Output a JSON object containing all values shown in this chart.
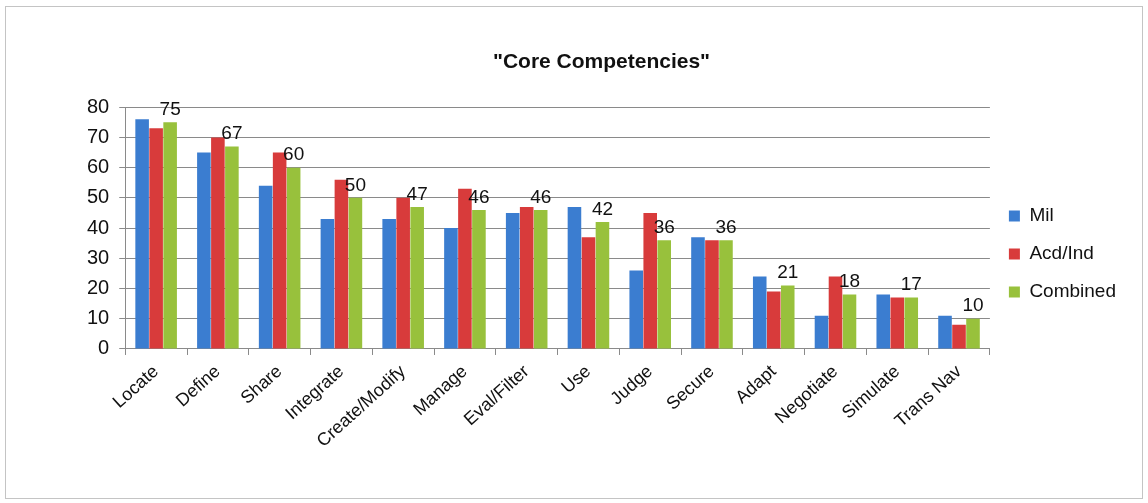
{
  "chart_data": {
    "type": "bar",
    "title": "\"Core Competencies\"",
    "categories": [
      "Locate",
      "Define",
      "Share",
      "Integrate",
      "Create/Modify",
      "Manage",
      "Eval/Filter",
      "Use",
      "Judge",
      "Secure",
      "Adapt",
      "Negotiate",
      "Simulate",
      "Trans Nav"
    ],
    "series": [
      {
        "name": "Mil",
        "color": "#3b7dd0",
        "values": [
          76,
          65,
          54,
          43,
          43,
          40,
          45,
          47,
          26,
          37,
          24,
          11,
          18,
          11
        ]
      },
      {
        "name": "Acd/Ind",
        "color": "#d83b3b",
        "values": [
          73,
          70,
          65,
          56,
          50,
          53,
          47,
          37,
          45,
          36,
          19,
          24,
          17,
          8
        ]
      },
      {
        "name": "Combined",
        "color": "#98c13c",
        "values": [
          75,
          67,
          60,
          50,
          47,
          46,
          46,
          42,
          36,
          36,
          21,
          18,
          17,
          10
        ],
        "value_labels": [
          "75",
          "67",
          "60",
          "50",
          "47",
          "46",
          "46",
          "42",
          "36",
          "36",
          "21",
          "18",
          "17",
          "10"
        ]
      }
    ],
    "ylim": [
      0,
      80
    ],
    "yticks": [
      0,
      10,
      20,
      30,
      40,
      50,
      60,
      70,
      80
    ],
    "grid": "y",
    "legend": "right"
  }
}
